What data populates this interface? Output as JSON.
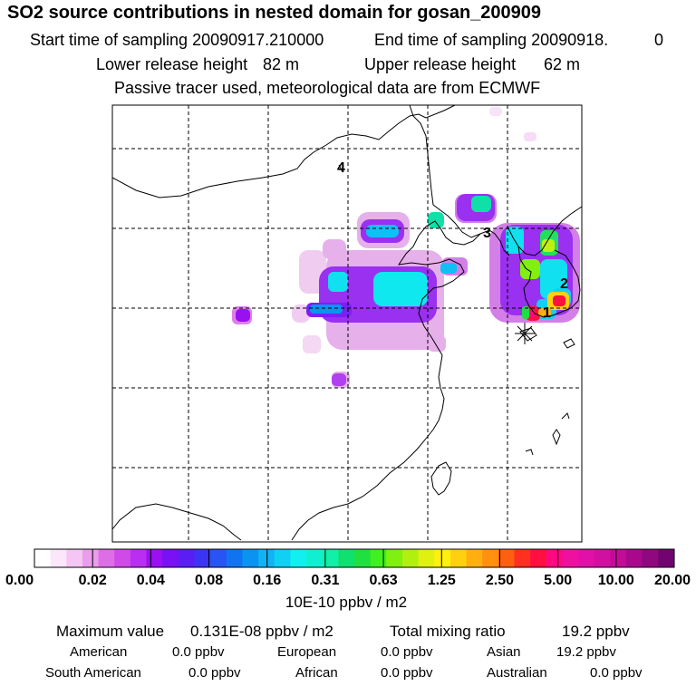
{
  "chart_data": {
    "type": "heatmap",
    "title": "SO2 source contributions in nested domain for gosan_200909",
    "header": {
      "start_label": "Start time of sampling 20090917.210000",
      "end_label": "End time of sampling 20090918.",
      "end_value": "0",
      "lower_label": "Lower release height",
      "lower_value": "82 m",
      "upper_label": "Upper release height",
      "upper_value": "62 m",
      "note": "Passive tracer used, meteorological data are from ECMWF"
    },
    "map_labels": [
      "4",
      "3",
      "2",
      "1"
    ],
    "receptor_marker": "*",
    "colorbar": {
      "tick_labels": [
        "0.00",
        "0.02",
        "0.04",
        "0.08",
        "0.16",
        "0.31",
        "0.63",
        "1.25",
        "2.50",
        "5.00",
        "10.00",
        "20.00"
      ],
      "colors": [
        "#ffffff",
        "#fbe6fb",
        "#f4c6f4",
        "#ea9dea",
        "#dd6ee6",
        "#cf4ae8",
        "#b92ef0",
        "#9a10f0",
        "#7a10f4",
        "#5a1ef4",
        "#3c34f4",
        "#2854f4",
        "#1074f0",
        "#0a94f0",
        "#10b4f4",
        "#10d0f4",
        "#10f0f0",
        "#10f0d0",
        "#10f0a8",
        "#10e070",
        "#20e040",
        "#40f020",
        "#80f010",
        "#b0f010",
        "#e0f010",
        "#fff010",
        "#ffd010",
        "#ffb010",
        "#ff9010",
        "#ff6010",
        "#ff3020",
        "#ff1040",
        "#ff0880",
        "#f010a0",
        "#e010a8",
        "#d010a0",
        "#c00c98",
        "#a8088c",
        "#900880",
        "#700470"
      ],
      "unit_label": "10E-10 ppbv / m2"
    },
    "summary": {
      "max_label": "Maximum value",
      "max_value": "0.131E-08 ppbv / m2",
      "total_label": "Total mixing ratio",
      "total_value": "19.2 ppbv",
      "regions": [
        {
          "name": "American",
          "value": "0.0 ppbv"
        },
        {
          "name": "European",
          "value": "0.0 ppbv"
        },
        {
          "name": "Asian",
          "value": "19.2 ppbv"
        },
        {
          "name": "South American",
          "value": "0.0 ppbv"
        },
        {
          "name": "African",
          "value": "0.0 ppbv"
        },
        {
          "name": "Australian",
          "value": "0.0 ppbv"
        }
      ]
    }
  }
}
